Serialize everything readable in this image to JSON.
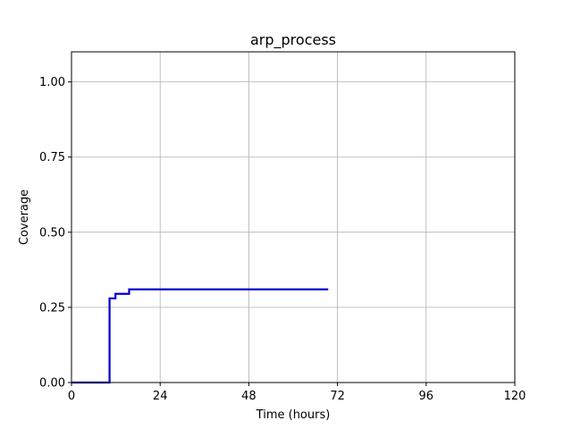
{
  "chart_data": {
    "type": "line",
    "title": "arp_process",
    "xlabel": "Time (hours)",
    "ylabel": "Coverage",
    "xlim": [
      0,
      120
    ],
    "ylim": [
      0,
      1.1
    ],
    "x_ticks": [
      0,
      24,
      48,
      72,
      96,
      120
    ],
    "x_tick_labels": [
      "0",
      "24",
      "48",
      "72",
      "96",
      "120"
    ],
    "y_ticks": [
      0,
      0.25,
      0.5,
      0.75,
      1.0
    ],
    "y_tick_labels": [
      "0.00",
      "0.25",
      "0.50",
      "0.75",
      "1.00"
    ],
    "grid": true,
    "legend": "none",
    "series": [
      {
        "color": "#0000cc",
        "step": "post",
        "x": [
          0,
          10.3,
          11.9,
          15.6,
          69.5
        ],
        "y": [
          0.0,
          0.28,
          0.295,
          0.31,
          0.31
        ]
      }
    ]
  }
}
